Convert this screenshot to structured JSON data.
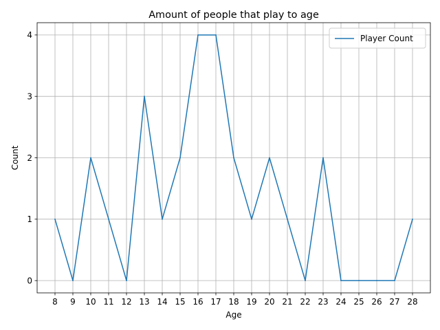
{
  "chart_data": {
    "type": "line",
    "title": "Amount of people that play to age",
    "xlabel": "Age",
    "ylabel": "Count",
    "x": [
      8,
      9,
      10,
      11,
      12,
      13,
      14,
      15,
      16,
      17,
      18,
      19,
      20,
      21,
      22,
      23,
      24,
      25,
      26,
      27,
      28
    ],
    "series": [
      {
        "name": "Player Count",
        "color": "#1f77b4",
        "values": [
          1,
          0,
          2,
          1,
          0,
          3,
          1,
          2,
          4,
          4,
          2,
          1,
          2,
          1,
          0,
          2,
          0,
          0,
          0,
          0,
          1
        ]
      }
    ],
    "xlim": [
      7,
      29
    ],
    "ylim": [
      -0.2,
      4.2
    ],
    "yticks": [
      0,
      1,
      2,
      3,
      4
    ],
    "grid": true,
    "legend": "top-right"
  }
}
